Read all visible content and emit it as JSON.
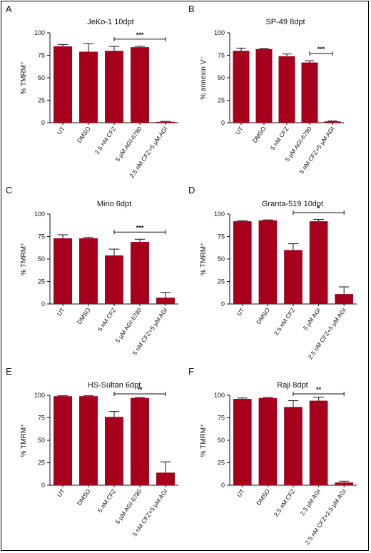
{
  "panels": [
    {
      "letter": "A"
    },
    {
      "letter": "B"
    },
    {
      "letter": "C"
    },
    {
      "letter": "D"
    },
    {
      "letter": "E"
    },
    {
      "letter": "F"
    }
  ],
  "colors": {
    "bar": "#a6001c",
    "axis": "#111111"
  },
  "chart_data": [
    {
      "type": "bar",
      "title": "JeKo-1 10dpt",
      "ylabel": "% TMRM⁺",
      "ylim": [
        0,
        100
      ],
      "yticks": [
        0,
        25,
        50,
        75,
        100
      ],
      "categories": [
        "UT",
        "DMSO",
        "2.5 nM CFZ",
        "5 µM AGI-6780",
        "2.5 nM CFZ+5 µM AGI"
      ],
      "values": [
        85,
        79,
        80,
        84,
        1
      ],
      "errors": [
        2,
        9,
        5,
        1,
        0.5
      ],
      "significance": {
        "from": 2,
        "to": 4,
        "label": "***"
      }
    },
    {
      "type": "bar",
      "title": "SP-49 8dpt",
      "ylabel": "% annexin V⁻",
      "ylim": [
        0,
        100
      ],
      "yticks": [
        0,
        25,
        50,
        75,
        100
      ],
      "categories": [
        "UT",
        "DMSO",
        "5 nM CFZ",
        "5 µM AGI-6780",
        "5 nM CFZ+5 µM AGI"
      ],
      "values": [
        80,
        82,
        74,
        67,
        1.5
      ],
      "errors": [
        3,
        0.5,
        2.5,
        2,
        0.5
      ],
      "significance": {
        "from": 3,
        "to": 4,
        "label": "***"
      }
    },
    {
      "type": "bar",
      "title": "Mino 6dpt",
      "ylabel": "% TMRM⁺",
      "ylim": [
        0,
        100
      ],
      "yticks": [
        0,
        25,
        50,
        75,
        100
      ],
      "categories": [
        "UT",
        "DMSO",
        "5 nM CFZ",
        "5 µM AGI-6780",
        "5 nM CFZ+5 µM AGI"
      ],
      "values": [
        73,
        73,
        54,
        69,
        7
      ],
      "errors": [
        4,
        1,
        7,
        3,
        6
      ],
      "significance": {
        "from": 2,
        "to": 4,
        "label": "***"
      }
    },
    {
      "type": "bar",
      "title": "Granta-519 10dpt",
      "ylabel": "% TMRM⁺",
      "ylim": [
        0,
        100
      ],
      "yticks": [
        0,
        25,
        50,
        75,
        100
      ],
      "categories": [
        "UT",
        "DMSO",
        "2.5 nM CFZ",
        "5 µM AGI",
        "2.5 nM CFZ+5 µM AGI"
      ],
      "values": [
        92,
        93,
        60,
        92,
        11
      ],
      "errors": [
        0.5,
        0.5,
        7,
        2,
        8
      ],
      "significance": {
        "from": 2,
        "to": 4,
        "label": "*"
      }
    },
    {
      "type": "bar",
      "title": "HS-Sultan 6dpt",
      "ylabel": "% TMRM⁺",
      "ylim": [
        0,
        100
      ],
      "yticks": [
        0,
        25,
        50,
        75,
        100
      ],
      "categories": [
        "UT",
        "DMSO",
        "5 nM CFZ",
        "5 µM AGI-6780",
        "5 nM CFZ+5 µM AGI"
      ],
      "values": [
        99,
        99,
        76,
        97,
        14
      ],
      "errors": [
        0.5,
        0.5,
        6,
        0.5,
        12
      ],
      "significance": {
        "from": 2,
        "to": 4,
        "label": "**"
      }
    },
    {
      "type": "bar",
      "title": "Raji 8dpt",
      "ylabel": "% TMRM⁺",
      "ylim": [
        0,
        100
      ],
      "yticks": [
        0,
        25,
        50,
        75,
        100
      ],
      "categories": [
        "UT",
        "DMSO",
        "2.5 nM CFZ",
        "2.5 µM AGI",
        "2.5 nM CFZ+2.5 µM AGI"
      ],
      "values": [
        96,
        97,
        87,
        94,
        3
      ],
      "errors": [
        1,
        0.5,
        7,
        4,
        1.5
      ],
      "significance": {
        "from": 2,
        "to": 4,
        "label": "**"
      }
    }
  ]
}
